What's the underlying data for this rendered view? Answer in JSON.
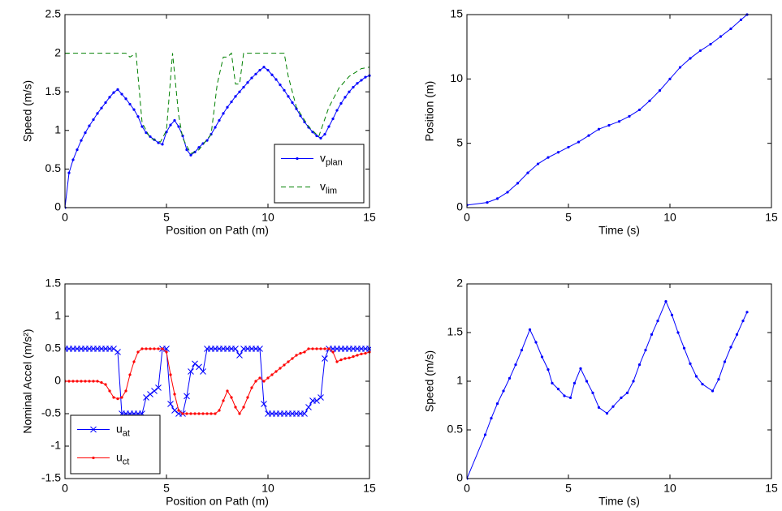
{
  "chart_data": [
    {
      "type": "line",
      "xlabel": "Position on Path (m)",
      "ylabel": "Speed (m/s)",
      "xlim": [
        0,
        15
      ],
      "ylim": [
        0,
        2.5
      ],
      "xticks": [
        0,
        5,
        10,
        15
      ],
      "yticks": [
        0,
        0.5,
        1,
        1.5,
        2,
        2.5
      ],
      "legend": "lower-right",
      "series": [
        {
          "name": "v",
          "name_sub": "plan",
          "color": "#0000ff",
          "marker": "dot",
          "linestyle": "solid",
          "x": [
            0,
            0.2,
            0.4,
            0.6,
            0.8,
            1,
            1.2,
            1.4,
            1.6,
            1.8,
            2,
            2.2,
            2.4,
            2.6,
            2.8,
            3,
            3.2,
            3.4,
            3.6,
            3.8,
            4,
            4.2,
            4.4,
            4.6,
            4.8,
            5,
            5.2,
            5.4,
            5.6,
            5.8,
            6,
            6.2,
            6.4,
            6.6,
            6.8,
            7,
            7.2,
            7.4,
            7.6,
            7.8,
            8,
            8.2,
            8.4,
            8.6,
            8.8,
            9,
            9.2,
            9.4,
            9.6,
            9.8,
            10,
            10.2,
            10.4,
            10.6,
            10.8,
            11,
            11.2,
            11.4,
            11.6,
            11.8,
            12,
            12.2,
            12.4,
            12.6,
            12.8,
            13,
            13.2,
            13.4,
            13.6,
            13.8,
            14,
            14.2,
            14.4,
            14.6,
            14.8,
            15
          ],
          "values": [
            0,
            0.45,
            0.62,
            0.75,
            0.87,
            0.97,
            1.06,
            1.14,
            1.22,
            1.29,
            1.36,
            1.43,
            1.49,
            1.53,
            1.47,
            1.41,
            1.34,
            1.27,
            1.18,
            1.05,
            0.97,
            0.92,
            0.88,
            0.84,
            0.82,
            0.98,
            1.07,
            1.13,
            1.05,
            0.93,
            0.75,
            0.68,
            0.72,
            0.78,
            0.83,
            0.87,
            0.95,
            1.04,
            1.13,
            1.22,
            1.3,
            1.37,
            1.44,
            1.5,
            1.56,
            1.62,
            1.68,
            1.73,
            1.78,
            1.82,
            1.78,
            1.72,
            1.66,
            1.59,
            1.52,
            1.44,
            1.36,
            1.28,
            1.19,
            1.11,
            1.04,
            0.98,
            0.93,
            0.9,
            0.95,
            1.05,
            1.15,
            1.26,
            1.35,
            1.43,
            1.5,
            1.56,
            1.61,
            1.65,
            1.69,
            1.71
          ]
        },
        {
          "name": "v",
          "name_sub": "lim",
          "color": "#008000",
          "marker": "none",
          "linestyle": "dashed",
          "x": [
            0,
            3,
            3.2,
            3.5,
            3.8,
            4.2,
            4.7,
            5,
            5.3,
            5.6,
            5.8,
            6.2,
            6.6,
            7.2,
            7.5,
            7.8,
            8,
            8.2,
            8.4,
            8.6,
            8.8,
            10.8,
            11,
            11.4,
            12,
            12.5,
            13,
            13.5,
            14,
            14.6,
            15
          ],
          "values": [
            2,
            2,
            1.95,
            2,
            1.1,
            0.9,
            0.85,
            1,
            2,
            1.2,
            0.9,
            0.7,
            0.75,
            0.95,
            1.6,
            1.95,
            1.95,
            2,
            1.6,
            1.6,
            2,
            2,
            1.7,
            1.3,
            1.05,
            0.92,
            1.3,
            1.55,
            1.7,
            1.8,
            1.82
          ]
        }
      ]
    },
    {
      "type": "line",
      "xlabel": "Time (s)",
      "ylabel": "Position (m)",
      "xlim": [
        0,
        15
      ],
      "ylim": [
        0,
        15
      ],
      "xticks": [
        0,
        5,
        10,
        15
      ],
      "yticks": [
        0,
        5,
        10,
        15
      ],
      "series": [
        {
          "color": "#0000ff",
          "marker": "dot",
          "linestyle": "solid",
          "x": [
            0,
            1,
            1.5,
            2,
            2.5,
            3,
            3.5,
            4,
            4.5,
            5,
            5.5,
            6,
            6.5,
            7,
            7.5,
            8,
            8.5,
            9,
            9.5,
            10,
            10.5,
            11,
            11.5,
            12,
            12.5,
            13,
            13.5,
            13.8
          ],
          "values": [
            0.2,
            0.4,
            0.7,
            1.2,
            1.9,
            2.7,
            3.4,
            3.9,
            4.3,
            4.7,
            5.1,
            5.6,
            6.1,
            6.4,
            6.7,
            7.1,
            7.6,
            8.3,
            9.1,
            10,
            10.9,
            11.6,
            12.2,
            12.7,
            13.3,
            13.9,
            14.6,
            15
          ]
        }
      ]
    },
    {
      "type": "line",
      "xlabel": "Position on Path (m)",
      "ylabel": "Nominal Accel (m/s²)",
      "xlim": [
        0,
        15
      ],
      "ylim": [
        -1.5,
        1.5
      ],
      "xticks": [
        0,
        5,
        10,
        15
      ],
      "yticks": [
        -1.5,
        -1,
        -0.5,
        0,
        0.5,
        1,
        1.5
      ],
      "legend": "lower-left",
      "x": [
        0,
        0.2,
        0.4,
        0.6,
        0.8,
        1,
        1.2,
        1.4,
        1.6,
        1.8,
        2,
        2.2,
        2.4,
        2.6,
        2.8,
        3,
        3.2,
        3.4,
        3.6,
        3.8,
        4,
        4.2,
        4.4,
        4.6,
        4.8,
        5,
        5.2,
        5.4,
        5.6,
        5.8,
        6,
        6.2,
        6.4,
        6.6,
        6.8,
        7,
        7.2,
        7.4,
        7.6,
        7.8,
        8,
        8.2,
        8.4,
        8.6,
        8.8,
        9,
        9.2,
        9.4,
        9.6,
        9.8,
        10,
        10.2,
        10.4,
        10.6,
        10.8,
        11,
        11.2,
        11.4,
        11.6,
        11.8,
        12,
        12.2,
        12.4,
        12.6,
        12.8,
        13,
        13.2,
        13.4,
        13.6,
        13.8,
        14,
        14.2,
        14.4,
        14.6,
        14.8,
        15
      ],
      "series": [
        {
          "name": "u",
          "name_sub": "at",
          "color": "#0000ff",
          "marker": "x",
          "linestyle": "solid",
          "values": [
            0.5,
            0.5,
            0.5,
            0.5,
            0.5,
            0.5,
            0.5,
            0.5,
            0.5,
            0.5,
            0.5,
            0.5,
            0.5,
            0.45,
            -0.5,
            -0.5,
            -0.5,
            -0.5,
            -0.5,
            -0.5,
            -0.25,
            -0.2,
            -0.15,
            -0.1,
            0.5,
            0.5,
            -0.35,
            -0.45,
            -0.5,
            -0.5,
            -0.23,
            0.15,
            0.27,
            0.22,
            0.15,
            0.5,
            0.5,
            0.5,
            0.5,
            0.5,
            0.5,
            0.5,
            0.5,
            0.4,
            0.5,
            0.5,
            0.5,
            0.5,
            0.5,
            -0.35,
            -0.5,
            -0.5,
            -0.5,
            -0.5,
            -0.5,
            -0.5,
            -0.5,
            -0.5,
            -0.5,
            -0.5,
            -0.4,
            -0.3,
            -0.3,
            -0.25,
            0.35,
            0.5,
            0.5,
            0.5,
            0.5,
            0.5,
            0.5,
            0.5,
            0.5,
            0.5,
            0.5,
            0.5
          ]
        },
        {
          "name": "u",
          "name_sub": "ct",
          "color": "#ff0000",
          "marker": "dot",
          "linestyle": "solid",
          "values": [
            0,
            0,
            0,
            0,
            0,
            0,
            0,
            0,
            0,
            -0.02,
            -0.05,
            -0.15,
            -0.25,
            -0.27,
            -0.25,
            -0.15,
            0.1,
            0.3,
            0.45,
            0.5,
            0.5,
            0.5,
            0.5,
            0.5,
            0.5,
            0.45,
            0.1,
            -0.2,
            -0.45,
            -0.5,
            -0.5,
            -0.5,
            -0.5,
            -0.5,
            -0.5,
            -0.5,
            -0.5,
            -0.5,
            -0.45,
            -0.3,
            -0.15,
            -0.25,
            -0.4,
            -0.5,
            -0.4,
            -0.25,
            -0.1,
            0,
            0.05,
            0,
            0.05,
            0.1,
            0.15,
            0.2,
            0.25,
            0.3,
            0.35,
            0.4,
            0.43,
            0.45,
            0.5,
            0.5,
            0.5,
            0.5,
            0.5,
            0.5,
            0.45,
            0.3,
            0.33,
            0.35,
            0.36,
            0.38,
            0.4,
            0.42,
            0.43,
            0.45
          ]
        }
      ]
    },
    {
      "type": "line",
      "xlabel": "Time (s)",
      "ylabel": "Speed (m/s)",
      "xlim": [
        0,
        15
      ],
      "ylim": [
        0,
        2
      ],
      "xticks": [
        0,
        5,
        10,
        15
      ],
      "yticks": [
        0,
        0.5,
        1,
        1.5,
        2
      ],
      "series": [
        {
          "color": "#0000ff",
          "marker": "dot",
          "linestyle": "solid",
          "x": [
            0,
            0.9,
            1.2,
            1.5,
            1.8,
            2.1,
            2.4,
            2.7,
            3.1,
            3.4,
            3.7,
            4,
            4.2,
            4.5,
            4.8,
            5.1,
            5.3,
            5.6,
            5.9,
            6.2,
            6.5,
            6.9,
            7.2,
            7.6,
            7.9,
            8.2,
            8.5,
            8.8,
            9.1,
            9.4,
            9.8,
            10.1,
            10.4,
            10.7,
            11,
            11.3,
            11.6,
            12.1,
            12.4,
            12.7,
            13,
            13.3,
            13.6,
            13.8
          ],
          "values": [
            0,
            0.45,
            0.62,
            0.77,
            0.9,
            1.03,
            1.17,
            1.32,
            1.53,
            1.4,
            1.25,
            1.12,
            0.98,
            0.92,
            0.85,
            0.83,
            0.98,
            1.13,
            1,
            0.88,
            0.73,
            0.67,
            0.74,
            0.83,
            0.88,
            1,
            1.17,
            1.32,
            1.48,
            1.62,
            1.82,
            1.68,
            1.5,
            1.34,
            1.18,
            1.05,
            0.97,
            0.9,
            1.02,
            1.2,
            1.35,
            1.48,
            1.62,
            1.71
          ]
        }
      ]
    }
  ]
}
